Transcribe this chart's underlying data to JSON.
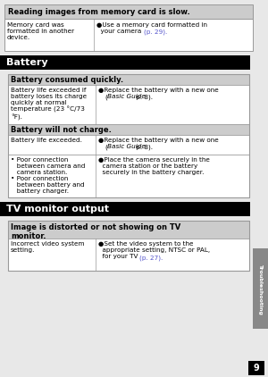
{
  "page_bg": "#e8e8e8",
  "white_bg": "#ffffff",
  "black_bg": "#000000",
  "gray_header_bg": "#cccccc",
  "link_color": "#5555cc",
  "border_color": "#999999",
  "sidebar_color": "#888888",
  "text_color": "#000000",
  "reading_header": "Reading images from memory card is slow.",
  "reading_left": "Memory card was formatted in another device.",
  "reading_right_pre": "●Use a memory card formatted in\n  your camera ",
  "reading_right_link": "(p. 29).",
  "battery_section": "Battery",
  "battery_consumed_hdr": "Battery consumed quickly.",
  "battery_consumed_left": "Battery life exceeded if battery loses its charge quickly at normal temperature (23 °C/73 °F).",
  "battery_consumed_right_pre": "●Replace the battery with a new one\n  (",
  "battery_consumed_right_italic": "Basic Guide",
  "battery_consumed_right_post": " p. 8).",
  "battery_notcharge_hdr": "Battery will not charge.",
  "battery_notcharge_left": "Battery life exceeded.",
  "battery_notcharge_right_pre": "●Replace the battery with a new one\n  (",
  "battery_notcharge_right_italic": "Basic Guide",
  "battery_notcharge_right_post": " p. 8).",
  "battery_notcharge2_left": "• Poor connection\n   between camera and\n   camera station.\n• Poor connection\n   between battery and\n   battery charger.",
  "battery_notcharge2_right": "●Place the camera securely in the\n  camera station or the battery\n  securely in the battery charger.",
  "tv_section": "TV monitor output",
  "tv_hdr": "Image is distorted or not showing on TV\nmonitor.",
  "tv_left": "Incorrect video system\nsetting.",
  "tv_right_pre": "●Set the video system to the\n  appropriate setting, NTSC or PAL,\n  for your TV ",
  "tv_right_link": "(p. 27).",
  "sidebar_text": "Troubleshooting",
  "page_number": "9"
}
